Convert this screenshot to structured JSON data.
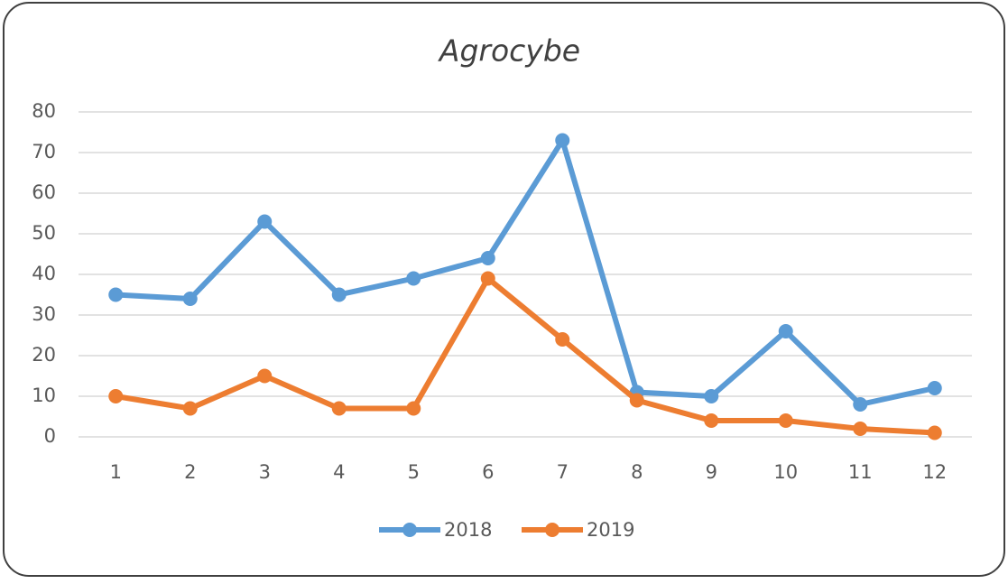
{
  "chart_data": {
    "type": "line",
    "title": "Agrocybe",
    "categories": [
      "1",
      "2",
      "3",
      "4",
      "5",
      "6",
      "7",
      "8",
      "9",
      "10",
      "11",
      "12"
    ],
    "series": [
      {
        "name": "2018",
        "color": "#5b9bd5",
        "values": [
          35,
          34,
          53,
          35,
          39,
          44,
          73,
          11,
          10,
          26,
          8,
          12
        ]
      },
      {
        "name": "2019",
        "color": "#ed7d31",
        "values": [
          10,
          7,
          15,
          7,
          7,
          39,
          24,
          9,
          4,
          4,
          2,
          1
        ]
      }
    ],
    "ylim": [
      0,
      80
    ],
    "yticks": [
      0,
      10,
      20,
      30,
      40,
      50,
      60,
      70,
      80
    ],
    "grid": true,
    "legend": "bottom"
  }
}
